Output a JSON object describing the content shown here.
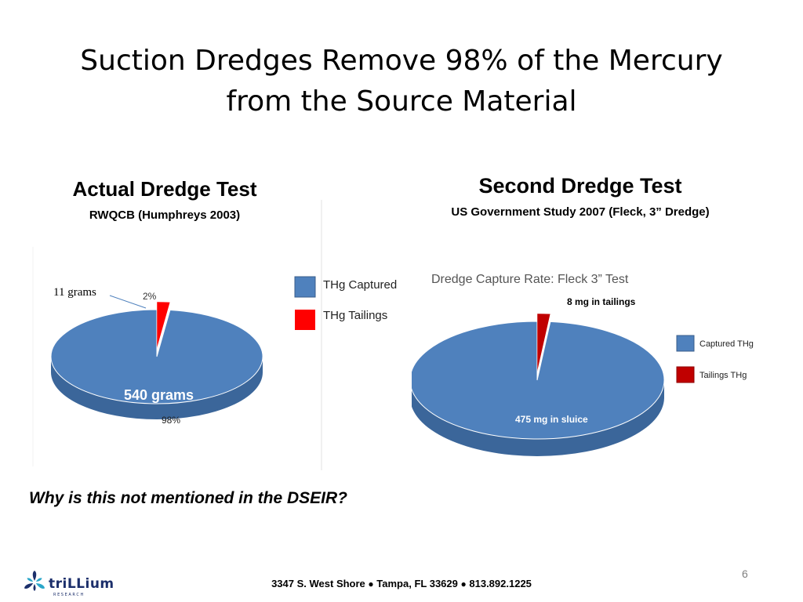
{
  "slide": {
    "title_line1": "Suction Dredges Remove 98% of the Mercury",
    "title_line2": "from the Source Material",
    "left_heading": "Actual Dredge Test",
    "left_subheading": "RWQCB (Humphreys 2003)",
    "right_heading": "Second Dredge Test",
    "right_subheading": "US Government Study 2007 (Fleck, 3” Dredge)",
    "question": "Why is this not mentioned in the DSEIR?",
    "page_number": "6",
    "footer": {
      "address": "3347 S. West Shore",
      "city": "Tampa, FL  33629",
      "phone": "813.892.1225",
      "separator": "●"
    },
    "logo": {
      "name": "triLLium",
      "tagline": "R E S E A R C H"
    }
  },
  "colors": {
    "captured": "#4f81bd",
    "tailings_left": "#ff0000",
    "tailings_right": "#c00000"
  },
  "chart_data": [
    {
      "type": "pie",
      "title": "",
      "slices": [
        {
          "name": "THg Captured",
          "value": 540,
          "label": "540 grams",
          "pct_label": "98%"
        },
        {
          "name": "THg Tailings",
          "value": 11,
          "label": "11 grams",
          "pct_label": "2%"
        }
      ],
      "legend": [
        "THg Captured",
        "THg Tailings"
      ],
      "legend_placement": "right"
    },
    {
      "type": "pie",
      "title": "Dredge Capture Rate: Fleck 3” Test",
      "slices": [
        {
          "name": "Captured THg",
          "value": 475,
          "label": "475 mg in sluice"
        },
        {
          "name": "Tailings THg",
          "value": 8,
          "label": "8 mg in tailings"
        }
      ],
      "legend": [
        "Captured THg",
        "Tailings THg"
      ],
      "legend_placement": "right"
    }
  ]
}
